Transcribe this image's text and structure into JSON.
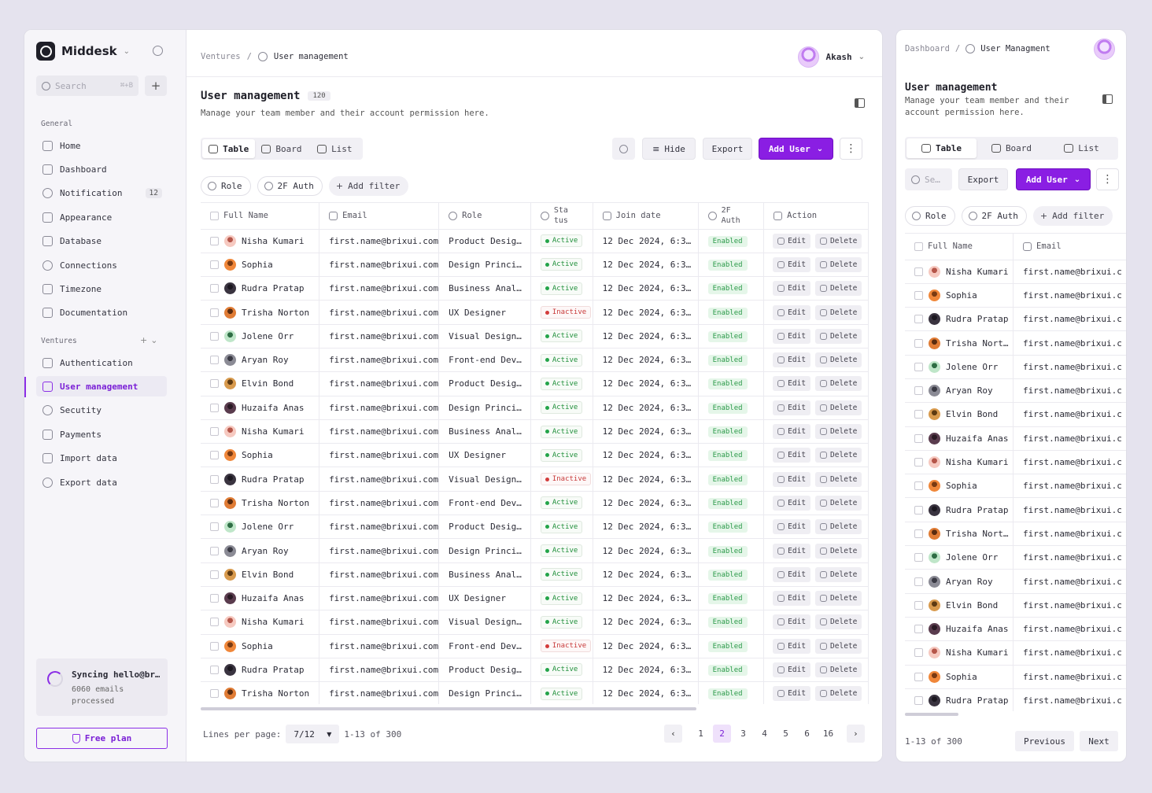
{
  "sidebar": {
    "brand": "Middesk",
    "search_placeholder": "Search",
    "search_shortcut": "⌘+B",
    "general_label": "General",
    "general_items": [
      {
        "label": "Home",
        "icon": "home-icon"
      },
      {
        "label": "Dashboard",
        "icon": "dashboard-icon"
      },
      {
        "label": "Notification",
        "icon": "notification-icon",
        "badge": "12"
      },
      {
        "label": "Appearance",
        "icon": "appearance-icon"
      },
      {
        "label": "Database",
        "icon": "database-icon"
      },
      {
        "label": "Connections",
        "icon": "connections-icon"
      },
      {
        "label": "Timezone",
        "icon": "clock-icon"
      },
      {
        "label": "Documentation",
        "icon": "document-icon"
      }
    ],
    "ventures_label": "Ventures",
    "venture_items": [
      {
        "label": "Authentication",
        "icon": "lock-icon"
      },
      {
        "label": "User management",
        "icon": "users-icon",
        "active": true
      },
      {
        "label": "Secutity",
        "icon": "shield-icon"
      },
      {
        "label": "Payments",
        "icon": "payments-icon"
      },
      {
        "label": "Import data",
        "icon": "import-icon"
      },
      {
        "label": "Export data",
        "icon": "export-icon"
      }
    ],
    "sync_title": "Syncing hello@br…",
    "sync_detail": "6060 emails processed",
    "plan_label": "Free plan"
  },
  "header": {
    "breadcrumb_root": "Ventures",
    "breadcrumb_current": "User management",
    "user_name": "Akash"
  },
  "page": {
    "title": "User management",
    "count": "120",
    "subtitle": "Manage your team member and their account permission here.",
    "views": [
      "Table",
      "Board",
      "List"
    ],
    "hide_label": "Hide",
    "export_label": "Export",
    "add_user_label": "Add User",
    "filters": [
      "Role",
      "2F Auth",
      "Add filter"
    ]
  },
  "table": {
    "columns": [
      "Full Name",
      "Email",
      "Role",
      "Sta tus",
      "Join date",
      "2F Auth",
      "Action"
    ],
    "edit_label": "Edit",
    "delete_label": "Delete",
    "rows": [
      {
        "name": "Nisha Kumari",
        "email": "first.name@brixui.com",
        "role": "Product Desig…",
        "status": "Active",
        "date": "12 Dec 2024, 6:3…",
        "twofa": "Enabled"
      },
      {
        "name": "Sophia",
        "email": "first.name@brixui.com",
        "role": "Design Princi…",
        "status": "Active",
        "date": "12 Dec 2024, 6:3…",
        "twofa": "Enabled"
      },
      {
        "name": "Rudra Pratap",
        "email": "first.name@brixui.com",
        "role": "Business Anal…",
        "status": "Active",
        "date": "12 Dec 2024, 6:3…",
        "twofa": "Enabled"
      },
      {
        "name": "Trisha Norton",
        "email": "first.name@brixui.com",
        "role": "UX Designer",
        "status": "Inactive",
        "date": "12 Dec 2024, 6:3…",
        "twofa": "Enabled"
      },
      {
        "name": "Jolene Orr",
        "email": "first.name@brixui.com",
        "role": "Visual Design…",
        "status": "Active",
        "date": "12 Dec 2024, 6:3…",
        "twofa": "Enabled"
      },
      {
        "name": "Aryan Roy",
        "email": "first.name@brixui.com",
        "role": "Front-end Dev…",
        "status": "Active",
        "date": "12 Dec 2024, 6:3…",
        "twofa": "Enabled"
      },
      {
        "name": "Elvin Bond",
        "email": "first.name@brixui.com",
        "role": "Product Desig…",
        "status": "Active",
        "date": "12 Dec 2024, 6:3…",
        "twofa": "Enabled"
      },
      {
        "name": "Huzaifa Anas",
        "email": "first.name@brixui.com",
        "role": "Design Princi…",
        "status": "Active",
        "date": "12 Dec 2024, 6:3…",
        "twofa": "Enabled"
      },
      {
        "name": "Nisha Kumari",
        "email": "first.name@brixui.com",
        "role": "Business Anal…",
        "status": "Active",
        "date": "12 Dec 2024, 6:3…",
        "twofa": "Enabled"
      },
      {
        "name": "Sophia",
        "email": "first.name@brixui.com",
        "role": "UX Designer",
        "status": "Active",
        "date": "12 Dec 2024, 6:3…",
        "twofa": "Enabled"
      },
      {
        "name": "Rudra Pratap",
        "email": "first.name@brixui.com",
        "role": "Visual Design…",
        "status": "Inactive",
        "date": "12 Dec 2024, 6:3…",
        "twofa": "Enabled"
      },
      {
        "name": "Trisha Norton",
        "email": "first.name@brixui.com",
        "role": "Front-end Dev…",
        "status": "Active",
        "date": "12 Dec 2024, 6:3…",
        "twofa": "Enabled"
      },
      {
        "name": "Jolene Orr",
        "email": "first.name@brixui.com",
        "role": "Product Desig…",
        "status": "Active",
        "date": "12 Dec 2024, 6:3…",
        "twofa": "Enabled"
      },
      {
        "name": "Aryan Roy",
        "email": "first.name@brixui.com",
        "role": "Design Princi…",
        "status": "Active",
        "date": "12 Dec 2024, 6:3…",
        "twofa": "Enabled"
      },
      {
        "name": "Elvin Bond",
        "email": "first.name@brixui.com",
        "role": "Business Anal…",
        "status": "Active",
        "date": "12 Dec 2024, 6:3…",
        "twofa": "Enabled"
      },
      {
        "name": "Huzaifa Anas",
        "email": "first.name@brixui.com",
        "role": "UX Designer",
        "status": "Active",
        "date": "12 Dec 2024, 6:3…",
        "twofa": "Enabled"
      },
      {
        "name": "Nisha Kumari",
        "email": "first.name@brixui.com",
        "role": "Visual Design…",
        "status": "Active",
        "date": "12 Dec 2024, 6:3…",
        "twofa": "Enabled"
      },
      {
        "name": "Sophia",
        "email": "first.name@brixui.com",
        "role": "Front-end Dev…",
        "status": "Inactive",
        "date": "12 Dec 2024, 6:3…",
        "twofa": "Enabled"
      },
      {
        "name": "Rudra Pratap",
        "email": "first.name@brixui.com",
        "role": "Product Desig…",
        "status": "Active",
        "date": "12 Dec 2024, 6:3…",
        "twofa": "Enabled"
      },
      {
        "name": "Trisha Norton",
        "email": "first.name@brixui.com",
        "role": "Design Princi…",
        "status": "Active",
        "date": "12 Dec 2024, 6:3…",
        "twofa": "Enabled"
      }
    ]
  },
  "pagination": {
    "lines_label": "Lines per page:",
    "per_page": "7/12",
    "range": "1-13 of 300",
    "pages": [
      "1",
      "2",
      "3",
      "4",
      "5",
      "6",
      "16"
    ],
    "current": "2"
  },
  "mobile": {
    "breadcrumb_root": "Dashboard",
    "breadcrumb_current": "User Managment",
    "title": "User management",
    "subtitle": "Manage your team member and their account permission here.",
    "search_placeholder": "Se…",
    "export_label": "Export",
    "add_user_label": "Add User",
    "columns": [
      "Full Name",
      "Email"
    ],
    "names": [
      "Nisha Kumari",
      "Sophia",
      "Rudra Pratap",
      "Trisha Nort…",
      "Jolene Orr",
      "Aryan Roy",
      "Elvin Bond",
      "Huzaifa Anas",
      "Nisha Kumari",
      "Sophia",
      "Rudra Pratap",
      "Trisha Nort…",
      "Jolene Orr",
      "Aryan Roy",
      "Elvin Bond",
      "Huzaifa Anas",
      "Nisha Kumari",
      "Sophia",
      "Rudra Pratap"
    ],
    "email": "first.name@brixui.c",
    "range": "1-13 of 300",
    "previous_label": "Previous",
    "next_label": "Next"
  },
  "colors": {
    "accent": "#8a1ee3",
    "active_status": "#1f8f3a",
    "inactive_status": "#c83a3a",
    "enabled_bg": "#e5f6e9"
  }
}
